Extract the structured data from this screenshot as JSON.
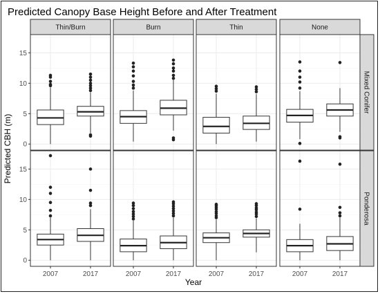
{
  "chart_data": {
    "type": "box",
    "title": "Predicted Canopy Base Height Before and After Treatment",
    "xlabel": "Year",
    "ylabel": "Predicted CBH (m)",
    "ylim": [
      -1,
      18
    ],
    "yticks": [
      0,
      5,
      10,
      15
    ],
    "categories": [
      "2007",
      "2017"
    ],
    "columns": [
      "Thin/Burn",
      "Burn",
      "Thin",
      "None"
    ],
    "rows": [
      "Mixed Conifer",
      "Ponderosa"
    ],
    "grid": true,
    "panels": [
      {
        "row": "Mixed Conifer",
        "column": "Thin/Burn",
        "boxes": [
          {
            "x": "2007",
            "min": 0.0,
            "q1": 3.2,
            "median": 4.3,
            "q3": 5.6,
            "max": 9.3,
            "outliers": [
              9.6,
              9.8,
              10.3,
              11.0,
              11.3
            ]
          },
          {
            "x": "2017",
            "min": 1.8,
            "q1": 4.6,
            "median": 5.3,
            "q3": 6.2,
            "max": 8.5,
            "outliers": [
              1.3,
              1.5,
              8.8,
              9.2,
              9.6,
              10.0,
              10.5,
              11.0,
              11.5
            ]
          }
        ]
      },
      {
        "row": "Mixed Conifer",
        "column": "Burn",
        "boxes": [
          {
            "x": "2007",
            "min": 0.4,
            "q1": 3.4,
            "median": 4.5,
            "q3": 5.5,
            "max": 8.8,
            "outliers": [
              9.2,
              9.7,
              10.3,
              11.2,
              12.0,
              12.7,
              13.3
            ]
          },
          {
            "x": "2017",
            "min": 2.2,
            "q1": 4.8,
            "median": 5.9,
            "q3": 7.2,
            "max": 10.5,
            "outliers": [
              0.7,
              1.0,
              10.8,
              11.3,
              12.0,
              12.5,
              13.2,
              13.8
            ]
          }
        ]
      },
      {
        "row": "Mixed Conifer",
        "column": "Thin",
        "boxes": [
          {
            "x": "2007",
            "min": 0.0,
            "q1": 1.8,
            "median": 2.9,
            "q3": 4.4,
            "max": 8.3,
            "outliers": [
              8.7,
              9.1,
              9.5
            ]
          },
          {
            "x": "2017",
            "min": 0.4,
            "q1": 2.4,
            "median": 3.4,
            "q3": 4.6,
            "max": 8.2,
            "outliers": [
              8.6,
              9.0,
              9.4
            ]
          }
        ]
      },
      {
        "row": "Mixed Conifer",
        "column": "None",
        "boxes": [
          {
            "x": "2007",
            "min": 0.8,
            "q1": 3.6,
            "median": 4.7,
            "q3": 5.7,
            "max": 8.7,
            "outliers": [
              0.1,
              9.2,
              10.2,
              11.0,
              12.0,
              13.5
            ]
          },
          {
            "x": "2017",
            "min": 2.0,
            "q1": 4.6,
            "median": 5.6,
            "q3": 6.6,
            "max": 9.2,
            "outliers": [
              1.0,
              1.2,
              13.4
            ]
          }
        ]
      },
      {
        "row": "Ponderosa",
        "column": "Thin/Burn",
        "boxes": [
          {
            "x": "2007",
            "min": 0.0,
            "q1": 2.5,
            "median": 3.4,
            "q3": 4.3,
            "max": 7.0,
            "outliers": [
              7.3,
              8.2,
              9.5,
              11.0,
              12.0,
              17.2
            ]
          },
          {
            "x": "2017",
            "min": 0.0,
            "q1": 3.1,
            "median": 4.1,
            "q3": 5.2,
            "max": 8.4,
            "outliers": [
              9.0,
              9.4,
              11.5,
              15.0
            ]
          }
        ]
      },
      {
        "row": "Ponderosa",
        "column": "Burn",
        "boxes": [
          {
            "x": "2007",
            "min": 0.0,
            "q1": 1.4,
            "median": 2.4,
            "q3": 3.5,
            "max": 6.5,
            "outliers": [
              6.8,
              7.2,
              7.6,
              8.0,
              8.5,
              9.0,
              9.4
            ]
          },
          {
            "x": "2017",
            "min": 0.0,
            "q1": 1.9,
            "median": 2.9,
            "q3": 4.0,
            "max": 7.0,
            "outliers": [
              7.3,
              7.7,
              8.1,
              8.5,
              8.9,
              9.3,
              9.6
            ]
          }
        ]
      },
      {
        "row": "Ponderosa",
        "column": "Thin",
        "boxes": [
          {
            "x": "2007",
            "min": 0.0,
            "q1": 2.9,
            "median": 3.7,
            "q3": 4.5,
            "max": 6.7,
            "outliers": [
              7.0,
              7.3,
              7.7,
              8.0,
              8.4,
              8.7,
              9.0,
              9.2
            ]
          },
          {
            "x": "2017",
            "min": 1.3,
            "q1": 3.8,
            "median": 4.4,
            "q3": 5.0,
            "max": 6.9,
            "outliers": [
              7.2,
              7.6,
              7.9,
              8.3,
              8.6,
              9.0,
              9.3
            ]
          }
        ]
      },
      {
        "row": "Ponderosa",
        "column": "None",
        "boxes": [
          {
            "x": "2007",
            "min": 0.0,
            "q1": 1.4,
            "median": 2.4,
            "q3": 3.4,
            "max": 6.0,
            "outliers": [
              8.4,
              16.3
            ]
          },
          {
            "x": "2017",
            "min": 0.0,
            "q1": 1.6,
            "median": 2.7,
            "q3": 3.9,
            "max": 7.0,
            "outliers": [
              7.3,
              7.8,
              8.7,
              15.8
            ]
          }
        ]
      }
    ]
  }
}
